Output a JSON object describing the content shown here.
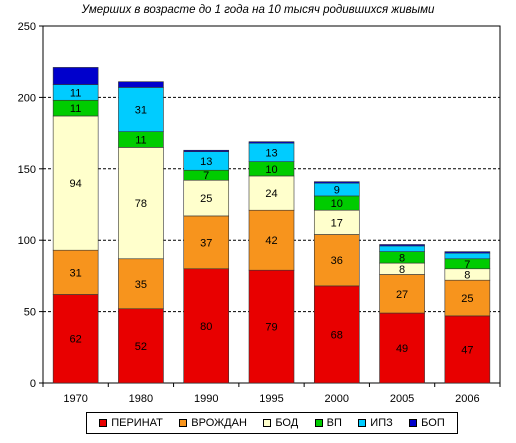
{
  "chart_data": {
    "type": "bar",
    "stacked": true,
    "title": "Умерших в возрасте до 1 года на 10 тысяч родившихся живыми",
    "categories": [
      "1970",
      "1980",
      "1990",
      "1995",
      "2000",
      "2005",
      "2006"
    ],
    "ylim": [
      0,
      250
    ],
    "yticks": [
      0,
      50,
      100,
      150,
      200,
      250
    ],
    "grid": true,
    "legend": "bottom",
    "series": [
      {
        "name": "ПЕРИНАТ",
        "color": "#e80000",
        "values": [
          62,
          52,
          80,
          79,
          68,
          49,
          47
        ],
        "labels": [
          "62",
          "52",
          "80",
          "79",
          "68",
          "49",
          "47"
        ]
      },
      {
        "name": "ВРОЖДАН",
        "color": "#f7941d",
        "values": [
          31,
          35,
          37,
          42,
          36,
          27,
          25
        ],
        "labels": [
          "31",
          "35",
          "37",
          "42",
          "36",
          "27",
          "25"
        ]
      },
      {
        "name": "БОД",
        "color": "#ffffcc",
        "values": [
          94,
          78,
          25,
          24,
          17,
          8,
          8
        ],
        "labels": [
          "94",
          "78",
          "25",
          "24",
          "17",
          "8",
          "8"
        ]
      },
      {
        "name": "ВП",
        "color": "#00cc00",
        "values": [
          11,
          11,
          7,
          10,
          10,
          8,
          7
        ],
        "labels": [
          "11",
          "11",
          "7",
          "10",
          "10",
          "8",
          "7"
        ]
      },
      {
        "name": "ИПЗ",
        "color": "#00ccff",
        "values": [
          11,
          31,
          13,
          13,
          9,
          4,
          4
        ],
        "labels": [
          "11",
          "31",
          "13",
          "13",
          "9",
          "",
          ""
        ]
      },
      {
        "name": "БОП",
        "color": "#0000cc",
        "values": [
          12,
          4,
          1,
          1,
          1,
          1,
          1
        ],
        "labels": [
          "",
          "",
          "",
          "",
          "",
          "",
          ""
        ]
      }
    ]
  }
}
